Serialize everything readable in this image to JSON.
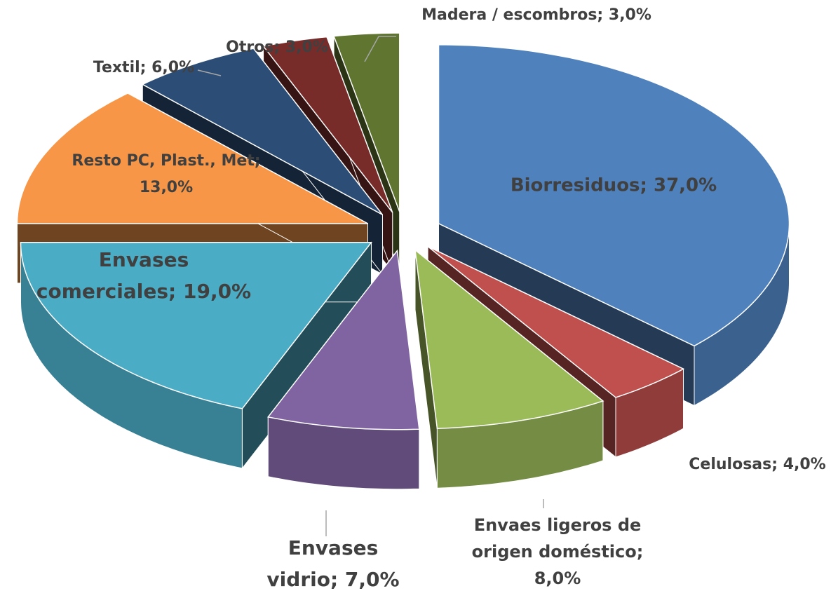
{
  "chart_data": {
    "type": "pie3d",
    "values": [
      37,
      4,
      8,
      7,
      19,
      13,
      6,
      3,
      3
    ],
    "value_labels": [
      [
        "Biorresiduos; 37,0%"
      ],
      [
        "Celulosas; 4,0%"
      ],
      [
        "Envaes ligeros de",
        "origen doméstico;",
        "8,0%"
      ],
      [
        "Envases",
        "vidrio; 7,0%"
      ],
      [
        "Envases",
        "comerciales; 19,0%"
      ],
      [
        "Resto PC, Plast., Met;",
        "13,0%"
      ],
      [
        "Textil; 6,0%"
      ],
      [
        "Otros; 3,0%"
      ],
      [
        "Madera / escombros; 3,0%"
      ]
    ],
    "colors": [
      "#4f81bd",
      "#c0504d",
      "#9bbb59",
      "#8064a2",
      "#4bacc6",
      "#f79646",
      "#2c4d75",
      "#772c2a",
      "#5f7530"
    ]
  }
}
